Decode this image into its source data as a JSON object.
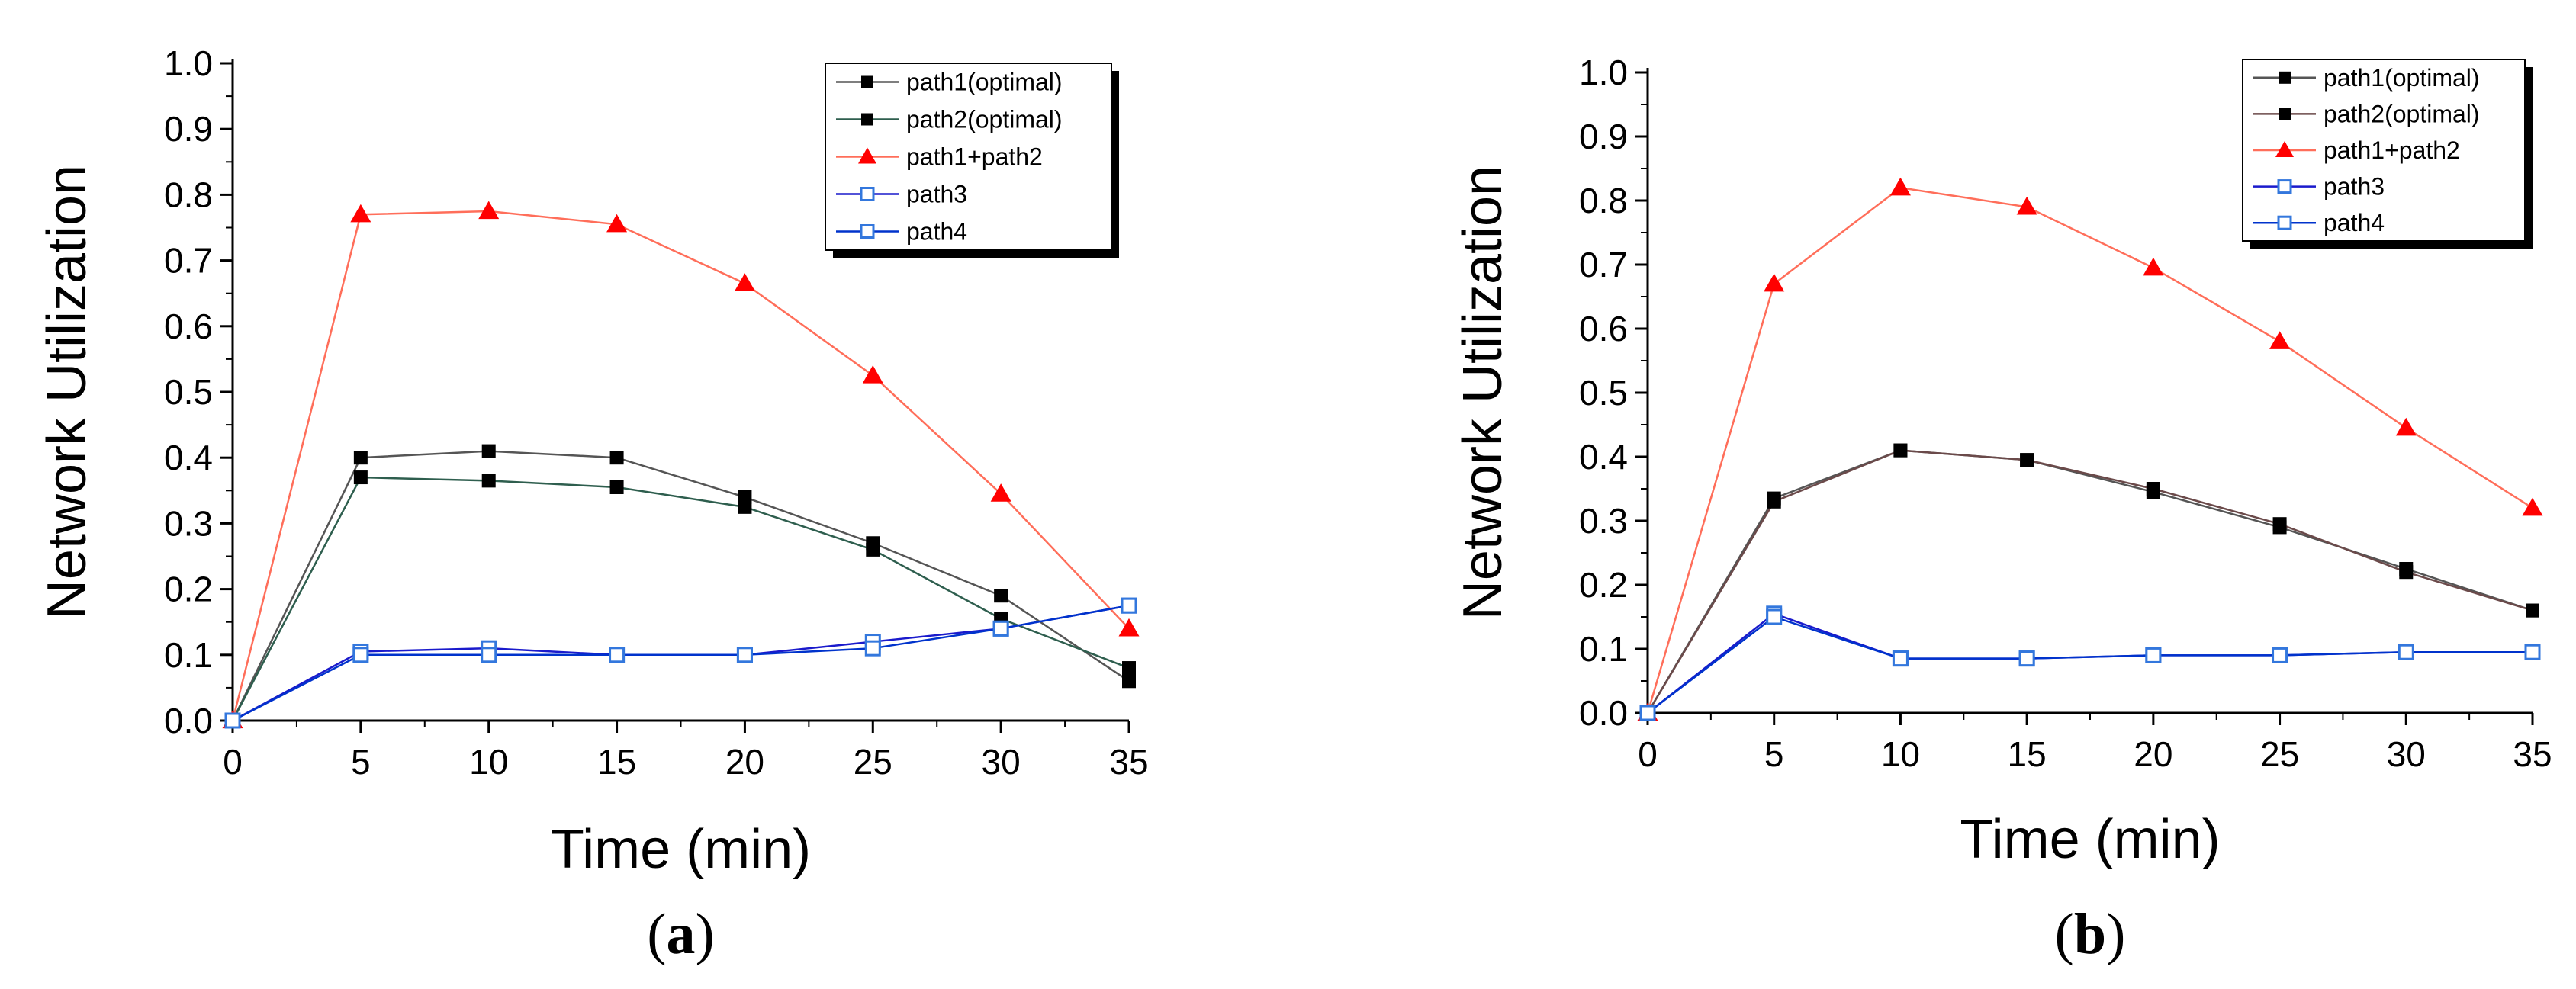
{
  "chart_data": [
    {
      "type": "line",
      "panel_label": "a",
      "title": "",
      "xlabel": "Time (min)",
      "ylabel": "Network Utilization",
      "xlim": [
        0,
        35
      ],
      "ylim": [
        0,
        1.0
      ],
      "x_ticks": [
        "0",
        "5",
        "10",
        "15",
        "20",
        "25",
        "30",
        "35"
      ],
      "y_ticks": [
        "0.0",
        "0.1",
        "0.2",
        "0.3",
        "0.4",
        "0.5",
        "0.6",
        "0.7",
        "0.8",
        "0.9",
        "1.0"
      ],
      "grid": false,
      "legend_position": "top-right",
      "x": [
        0,
        5,
        10,
        15,
        20,
        25,
        30,
        35
      ],
      "series": [
        {
          "name": "path1(optimal)",
          "color": "#555555",
          "marker_color": "#000000",
          "marker": "filled-square",
          "values": [
            0.0,
            0.4,
            0.41,
            0.4,
            0.34,
            0.27,
            0.19,
            0.06
          ]
        },
        {
          "name": "path2(optimal)",
          "color": "#2e5e4e",
          "marker_color": "#000000",
          "marker": "filled-square",
          "values": [
            0.0,
            0.37,
            0.365,
            0.355,
            0.325,
            0.26,
            0.155,
            0.08
          ]
        },
        {
          "name": "path1+path2",
          "color": "#ff6e5a",
          "marker_color": "#ff0000",
          "marker": "filled-triangle",
          "values": [
            0.0,
            0.77,
            0.775,
            0.755,
            0.665,
            0.525,
            0.345,
            0.14
          ]
        },
        {
          "name": "path3",
          "color": "#1a1acc",
          "marker_color": "#3377dd",
          "marker": "open-square",
          "values": [
            0.0,
            0.105,
            0.11,
            0.1,
            0.1,
            0.12,
            0.14,
            0.175
          ]
        },
        {
          "name": "path4",
          "color": "#0033cc",
          "marker_color": "#3377dd",
          "marker": "open-square",
          "values": [
            0.0,
            0.1,
            0.1,
            0.1,
            0.1,
            0.11,
            0.14,
            0.175
          ]
        }
      ]
    },
    {
      "type": "line",
      "panel_label": "b",
      "title": "",
      "xlabel": "Time (min)",
      "ylabel": "Network Utilization",
      "xlim": [
        0,
        35
      ],
      "ylim": [
        0,
        1.0
      ],
      "x_ticks": [
        "0",
        "5",
        "10",
        "15",
        "20",
        "25",
        "30",
        "35"
      ],
      "y_ticks": [
        "0.0",
        "0.1",
        "0.2",
        "0.3",
        "0.4",
        "0.5",
        "0.6",
        "0.7",
        "0.8",
        "0.9",
        "1.0"
      ],
      "grid": false,
      "legend_position": "top-right",
      "x": [
        0,
        5,
        10,
        15,
        20,
        25,
        30,
        35
      ],
      "series": [
        {
          "name": "path1(optimal)",
          "color": "#555555",
          "marker_color": "#000000",
          "marker": "filled-square",
          "values": [
            0.0,
            0.335,
            0.41,
            0.395,
            0.345,
            0.29,
            0.225,
            0.16
          ]
        },
        {
          "name": "path2(optimal)",
          "color": "#6b4a4a",
          "marker_color": "#000000",
          "marker": "filled-square",
          "values": [
            0.0,
            0.33,
            0.41,
            0.395,
            0.35,
            0.295,
            0.22,
            0.16
          ]
        },
        {
          "name": "path1+path2",
          "color": "#ff6e5a",
          "marker_color": "#ff0000",
          "marker": "filled-triangle",
          "values": [
            0.0,
            0.67,
            0.82,
            0.79,
            0.695,
            0.58,
            0.445,
            0.32
          ]
        },
        {
          "name": "path3",
          "color": "#1a1acc",
          "marker_color": "#3377dd",
          "marker": "open-square",
          "values": [
            0.0,
            0.155,
            0.085,
            0.085,
            0.09,
            0.09,
            0.095,
            0.095
          ]
        },
        {
          "name": "path4",
          "color": "#0033cc",
          "marker_color": "#3377dd",
          "marker": "open-square",
          "values": [
            0.0,
            0.15,
            0.085,
            0.085,
            0.09,
            0.09,
            0.095,
            0.095
          ]
        }
      ]
    }
  ]
}
